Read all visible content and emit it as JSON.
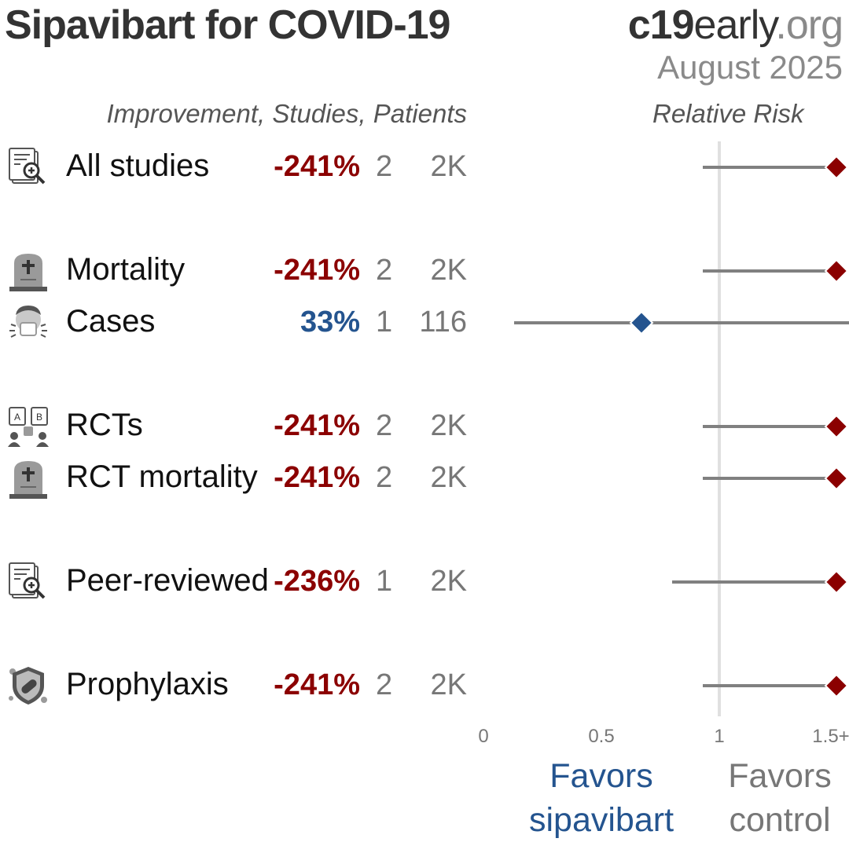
{
  "header": {
    "title": "Sipavibart for COVID-19",
    "brand_bold": "c19",
    "brand_mid": "early",
    "brand_tail": ".org",
    "date": "August 2025"
  },
  "columns": {
    "left_header": "Improvement, Studies, Patients",
    "right_header": "Relative Risk"
  },
  "colors": {
    "negative": "#8b0000",
    "positive": "#24548f",
    "line": "#808080",
    "refline": "#e0e0e0"
  },
  "rows": [
    {
      "label": "All studies",
      "icon": "document-magnifier-icon",
      "improvement": "-241%",
      "studies": "2",
      "patients": "2K",
      "favorable": false
    },
    {
      "label": "Mortality",
      "icon": "tombstone-icon",
      "improvement": "-241%",
      "studies": "2",
      "patients": "2K",
      "favorable": false
    },
    {
      "label": "Cases",
      "icon": "sneezing-person-icon",
      "improvement": "33%",
      "studies": "1",
      "patients": "116",
      "favorable": true
    },
    {
      "label": "RCTs",
      "icon": "ab-test-icon",
      "improvement": "-241%",
      "studies": "2",
      "patients": "2K",
      "favorable": false
    },
    {
      "label": "RCT mortality",
      "icon": "tombstone-icon",
      "improvement": "-241%",
      "studies": "2",
      "patients": "2K",
      "favorable": false
    },
    {
      "label": "Peer-reviewed",
      "icon": "document-magnifier-icon",
      "improvement": "-236%",
      "studies": "1",
      "patients": "2K",
      "favorable": false
    },
    {
      "label": "Prophylaxis",
      "icon": "shield-virus-icon",
      "improvement": "-241%",
      "studies": "2",
      "patients": "2K",
      "favorable": false
    }
  ],
  "chart_data": {
    "type": "forest",
    "x_axis_label": "Relative Risk",
    "xlim": [
      0,
      1.5
    ],
    "xticks": [
      "0",
      "0.5",
      "1",
      "1.5+"
    ],
    "reference_line": 1,
    "series": [
      {
        "category": "All studies",
        "rr": 1.5,
        "ci_low": 0.93,
        "ci_high": 1.5,
        "capped": true
      },
      {
        "category": "Mortality",
        "rr": 1.5,
        "ci_low": 0.93,
        "ci_high": 1.5,
        "capped": true
      },
      {
        "category": "Cases",
        "rr": 0.67,
        "ci_low": 0.13,
        "ci_high": 1.5,
        "capped": false
      },
      {
        "category": "RCTs",
        "rr": 1.5,
        "ci_low": 0.93,
        "ci_high": 1.5,
        "capped": true
      },
      {
        "category": "RCT mortality",
        "rr": 1.5,
        "ci_low": 0.93,
        "ci_high": 1.5,
        "capped": true
      },
      {
        "category": "Peer-reviewed",
        "rr": 1.5,
        "ci_low": 0.8,
        "ci_high": 1.5,
        "capped": true
      },
      {
        "category": "Prophylaxis",
        "rr": 1.5,
        "ci_low": 0.93,
        "ci_high": 1.5,
        "capped": true
      }
    ],
    "favors_left": "Favors sipavibart",
    "favors_left_line1": "Favors",
    "favors_left_line2": "sipavibart",
    "favors_right": "Favors control",
    "favors_right_line1": "Favors",
    "favors_right_line2": "control"
  }
}
